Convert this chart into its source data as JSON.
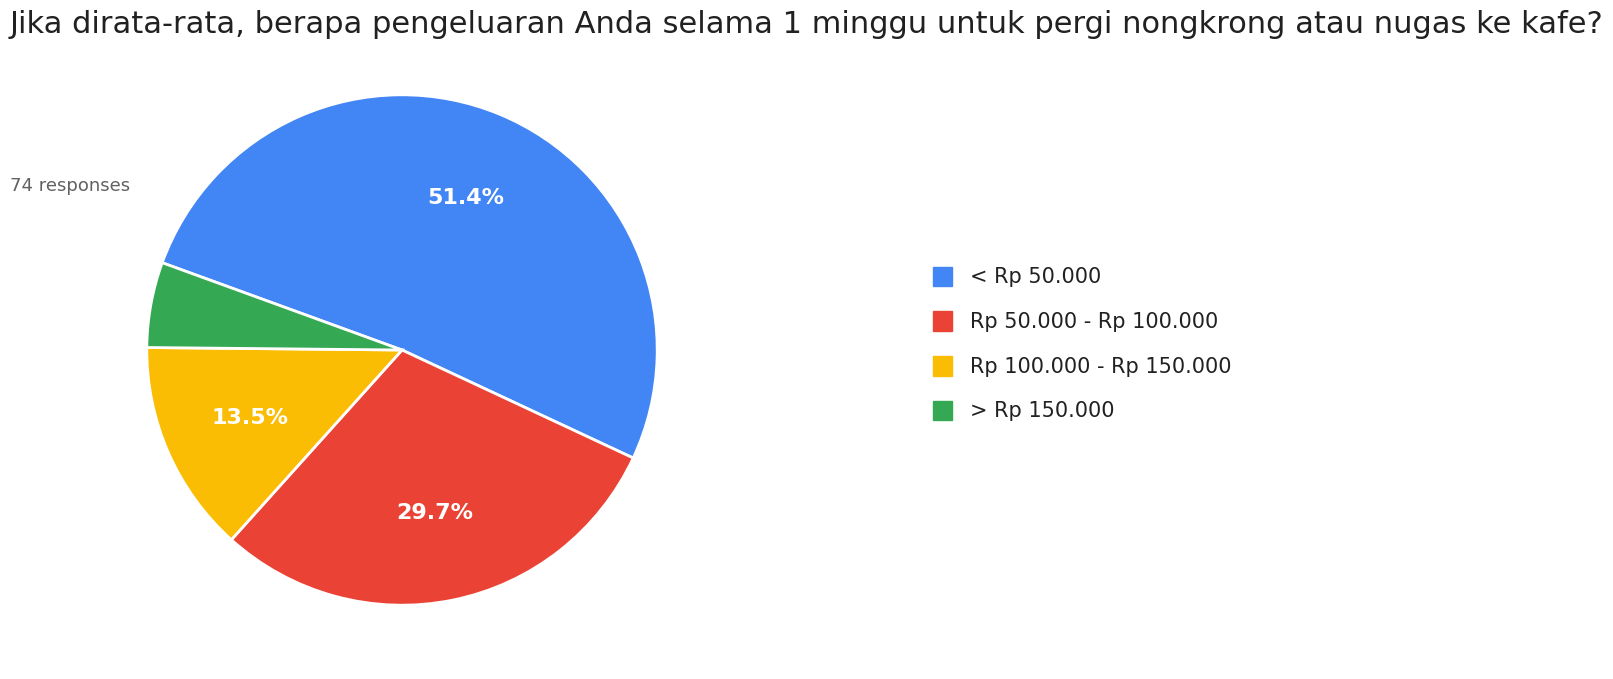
{
  "title": "Jika dirata-rata, berapa pengeluaran Anda selama 1 minggu untuk pergi nongkrong atau nugas ke kafe?",
  "subtitle": "74 responses",
  "labels": [
    "< Rp 50.000",
    "Rp 50.000 - Rp 100.000",
    "Rp 100.000 - Rp 150.000",
    "> Rp 150.000"
  ],
  "values": [
    51.4,
    29.7,
    13.5,
    5.4
  ],
  "colors": [
    "#4285F4",
    "#EA4335",
    "#FBBC04",
    "#34A853"
  ],
  "pct_labels": [
    "51.4%",
    "29.7%",
    "13.5%",
    ""
  ],
  "background_color": "#ffffff",
  "title_fontsize": 22,
  "subtitle_fontsize": 13,
  "legend_fontsize": 15,
  "startangle": 160
}
